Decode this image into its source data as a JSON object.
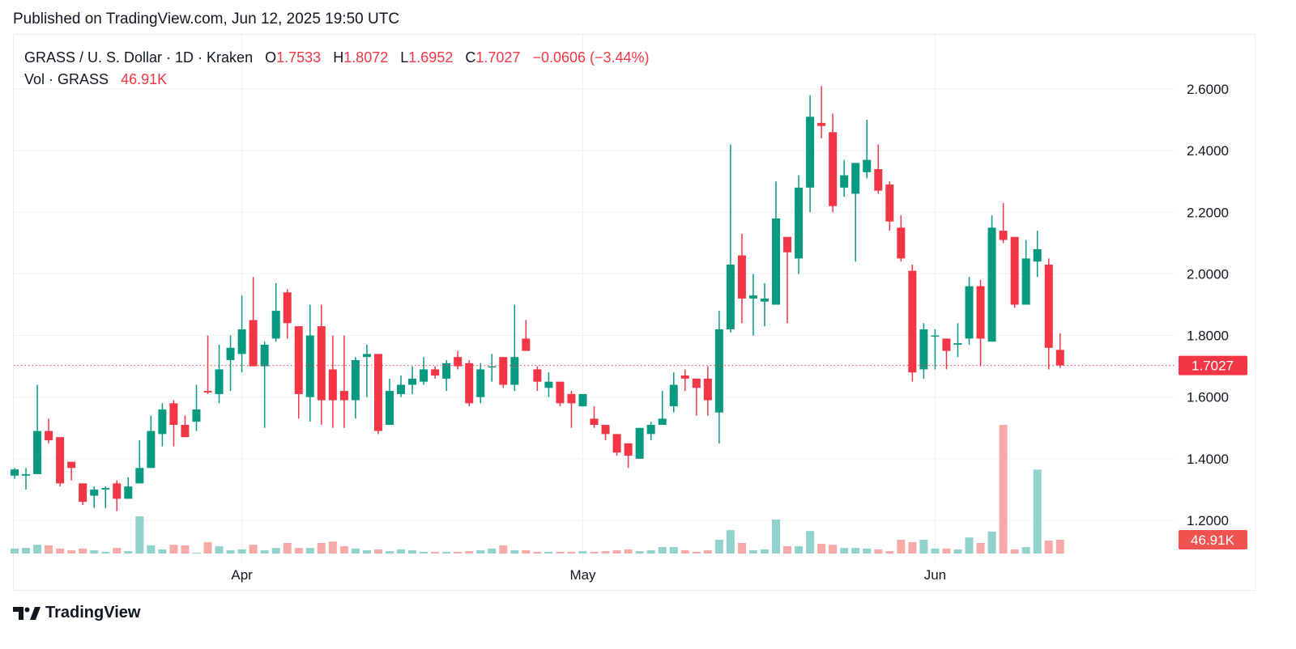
{
  "header": {
    "published": "Published on TradingView.com, Jun 12, 2025 19:50 UTC"
  },
  "legend": {
    "symbol": "GRASS / U. S. Dollar · 1D · Kraken",
    "o_label": "O",
    "o": "1.7533",
    "h_label": "H",
    "h": "1.8072",
    "l_label": "L",
    "l": "1.6952",
    "c_label": "C",
    "c": "1.7027",
    "change": "−0.0606 (−3.44%)",
    "vol_label": "Vol · GRASS",
    "vol": "46.91K"
  },
  "footer": {
    "logo_text": "TradingView"
  },
  "chart_data": {
    "type": "candlestick",
    "symbol": "GRASS/USD",
    "interval": "1D",
    "exchange": "Kraken",
    "y_ticks": [
      "1.2000",
      "1.4000",
      "1.6000",
      "1.8000",
      "2.0000",
      "2.2000",
      "2.4000",
      "2.6000"
    ],
    "x_ticks": [
      {
        "label": "Apr",
        "date": "2025-04-01"
      },
      {
        "label": "May",
        "date": "2025-05-01"
      },
      {
        "label": "Jun",
        "date": "2025-06-01"
      }
    ],
    "last_price_label": "1.7027",
    "last_volume_label": "46.91K",
    "grid": true,
    "colors": {
      "up": "#089981",
      "down": "#f23645",
      "vol_up": "#92d2cc",
      "vol_down": "#f7a9a7"
    },
    "columns": [
      "date",
      "open",
      "high",
      "low",
      "close",
      "volume_k"
    ],
    "candles": [
      [
        "2025-03-12",
        1.345,
        1.37,
        1.335,
        1.365,
        17
      ],
      [
        "2025-03-13",
        1.345,
        1.37,
        1.3,
        1.35,
        19
      ],
      [
        "2025-03-14",
        1.35,
        1.64,
        1.35,
        1.49,
        30
      ],
      [
        "2025-03-15",
        1.49,
        1.53,
        1.45,
        1.46,
        28
      ],
      [
        "2025-03-16",
        1.47,
        1.47,
        1.31,
        1.32,
        17
      ],
      [
        "2025-03-17",
        1.39,
        1.39,
        1.33,
        1.37,
        11
      ],
      [
        "2025-03-18",
        1.32,
        1.32,
        1.25,
        1.26,
        17
      ],
      [
        "2025-03-19",
        1.28,
        1.31,
        1.24,
        1.3,
        11
      ],
      [
        "2025-03-20",
        1.3,
        1.31,
        1.24,
        1.305,
        6
      ],
      [
        "2025-03-21",
        1.32,
        1.33,
        1.23,
        1.27,
        19
      ],
      [
        "2025-03-22",
        1.27,
        1.34,
        1.27,
        1.31,
        8
      ],
      [
        "2025-03-23",
        1.32,
        1.46,
        1.32,
        1.37,
        127
      ],
      [
        "2025-03-24",
        1.37,
        1.54,
        1.37,
        1.49,
        28
      ],
      [
        "2025-03-25",
        1.48,
        1.58,
        1.44,
        1.56,
        14
      ],
      [
        "2025-03-26",
        1.58,
        1.59,
        1.44,
        1.51,
        30
      ],
      [
        "2025-03-27",
        1.51,
        1.54,
        1.47,
        1.47,
        28
      ],
      [
        "2025-03-28",
        1.52,
        1.64,
        1.49,
        1.56,
        3
      ],
      [
        "2025-03-29",
        1.62,
        1.8,
        1.61,
        1.615,
        39
      ],
      [
        "2025-03-30",
        1.61,
        1.77,
        1.58,
        1.69,
        25
      ],
      [
        "2025-03-31",
        1.72,
        1.8,
        1.62,
        1.76,
        11
      ],
      [
        "2025-04-01",
        1.74,
        1.93,
        1.68,
        1.82,
        14
      ],
      [
        "2025-04-02",
        1.85,
        1.99,
        1.7,
        1.7,
        30
      ],
      [
        "2025-04-03",
        1.7,
        1.78,
        1.5,
        1.77,
        11
      ],
      [
        "2025-04-04",
        1.79,
        1.97,
        1.78,
        1.88,
        19
      ],
      [
        "2025-04-05",
        1.94,
        1.95,
        1.79,
        1.84,
        36
      ],
      [
        "2025-04-06",
        1.83,
        1.83,
        1.53,
        1.61,
        19
      ],
      [
        "2025-04-07",
        1.6,
        1.9,
        1.52,
        1.8,
        19
      ],
      [
        "2025-04-08",
        1.83,
        1.9,
        1.51,
        1.59,
        36
      ],
      [
        "2025-04-09",
        1.69,
        1.8,
        1.5,
        1.59,
        41
      ],
      [
        "2025-04-10",
        1.62,
        1.8,
        1.5,
        1.59,
        25
      ],
      [
        "2025-04-11",
        1.59,
        1.73,
        1.53,
        1.72,
        17
      ],
      [
        "2025-04-12",
        1.73,
        1.77,
        1.6,
        1.74,
        11
      ],
      [
        "2025-04-13",
        1.74,
        1.74,
        1.48,
        1.49,
        14
      ],
      [
        "2025-04-14",
        1.51,
        1.66,
        1.51,
        1.62,
        8
      ],
      [
        "2025-04-15",
        1.61,
        1.67,
        1.6,
        1.64,
        14
      ],
      [
        "2025-04-16",
        1.64,
        1.7,
        1.61,
        1.66,
        11
      ],
      [
        "2025-04-17",
        1.65,
        1.73,
        1.64,
        1.69,
        6
      ],
      [
        "2025-04-18",
        1.69,
        1.7,
        1.66,
        1.67,
        6
      ],
      [
        "2025-04-19",
        1.66,
        1.72,
        1.62,
        1.71,
        6
      ],
      [
        "2025-04-20",
        1.73,
        1.75,
        1.69,
        1.7,
        6
      ],
      [
        "2025-04-21",
        1.71,
        1.72,
        1.57,
        1.58,
        8
      ],
      [
        "2025-04-22",
        1.6,
        1.71,
        1.58,
        1.69,
        11
      ],
      [
        "2025-04-23",
        1.7,
        1.74,
        1.65,
        1.7,
        17
      ],
      [
        "2025-04-24",
        1.73,
        1.73,
        1.63,
        1.64,
        28
      ],
      [
        "2025-04-25",
        1.64,
        1.9,
        1.62,
        1.73,
        11
      ],
      [
        "2025-04-26",
        1.79,
        1.85,
        1.75,
        1.75,
        11
      ],
      [
        "2025-04-27",
        1.69,
        1.7,
        1.62,
        1.65,
        6
      ],
      [
        "2025-04-28",
        1.63,
        1.68,
        1.6,
        1.65,
        6
      ],
      [
        "2025-04-29",
        1.65,
        1.65,
        1.57,
        1.58,
        6
      ],
      [
        "2025-04-30",
        1.61,
        1.62,
        1.5,
        1.58,
        6
      ],
      [
        "2025-05-01",
        1.57,
        1.61,
        1.57,
        1.61,
        8
      ],
      [
        "2025-05-02",
        1.53,
        1.57,
        1.5,
        1.51,
        6
      ],
      [
        "2025-05-03",
        1.51,
        1.51,
        1.46,
        1.48,
        8
      ],
      [
        "2025-05-04",
        1.48,
        1.48,
        1.41,
        1.42,
        11
      ],
      [
        "2025-05-05",
        1.45,
        1.45,
        1.37,
        1.41,
        14
      ],
      [
        "2025-05-06",
        1.4,
        1.5,
        1.4,
        1.5,
        8
      ],
      [
        "2025-05-07",
        1.48,
        1.52,
        1.46,
        1.51,
        11
      ],
      [
        "2025-05-08",
        1.51,
        1.62,
        1.51,
        1.53,
        22
      ],
      [
        "2025-05-09",
        1.57,
        1.68,
        1.55,
        1.64,
        22
      ],
      [
        "2025-05-10",
        1.67,
        1.69,
        1.62,
        1.66,
        11
      ],
      [
        "2025-05-11",
        1.66,
        1.66,
        1.54,
        1.63,
        6
      ],
      [
        "2025-05-12",
        1.66,
        1.7,
        1.54,
        1.59,
        11
      ],
      [
        "2025-05-13",
        1.55,
        1.88,
        1.45,
        1.82,
        47
      ],
      [
        "2025-05-14",
        1.82,
        2.42,
        1.81,
        2.03,
        80
      ],
      [
        "2025-05-15",
        2.06,
        2.13,
        1.84,
        1.92,
        36
      ],
      [
        "2025-05-16",
        1.92,
        2.0,
        1.8,
        1.93,
        11
      ],
      [
        "2025-05-17",
        1.91,
        1.97,
        1.83,
        1.92,
        14
      ],
      [
        "2025-05-18",
        1.9,
        2.3,
        1.9,
        2.18,
        116
      ],
      [
        "2025-05-19",
        2.12,
        2.12,
        1.84,
        2.07,
        25
      ],
      [
        "2025-05-20",
        2.05,
        2.32,
        2.0,
        2.28,
        25
      ],
      [
        "2025-05-21",
        2.28,
        2.58,
        2.2,
        2.51,
        77
      ],
      [
        "2025-05-22",
        2.49,
        2.61,
        2.44,
        2.48,
        33
      ],
      [
        "2025-05-23",
        2.46,
        2.52,
        2.2,
        2.22,
        30
      ],
      [
        "2025-05-24",
        2.28,
        2.37,
        2.25,
        2.32,
        19
      ],
      [
        "2025-05-25",
        2.26,
        2.36,
        2.04,
        2.36,
        19
      ],
      [
        "2025-05-26",
        2.33,
        2.5,
        2.31,
        2.37,
        17
      ],
      [
        "2025-05-27",
        2.34,
        2.42,
        2.26,
        2.27,
        14
      ],
      [
        "2025-05-28",
        2.29,
        2.3,
        2.14,
        2.17,
        8
      ],
      [
        "2025-05-29",
        2.15,
        2.19,
        2.04,
        2.05,
        47
      ],
      [
        "2025-05-30",
        2.01,
        2.03,
        1.65,
        1.68,
        39
      ],
      [
        "2025-05-31",
        1.69,
        1.84,
        1.66,
        1.82,
        47
      ],
      [
        "2025-06-01",
        1.8,
        1.82,
        1.69,
        1.8,
        17
      ],
      [
        "2025-06-02",
        1.79,
        1.79,
        1.69,
        1.75,
        17
      ],
      [
        "2025-06-03",
        1.77,
        1.84,
        1.73,
        1.775,
        14
      ],
      [
        "2025-06-04",
        1.79,
        1.99,
        1.77,
        1.96,
        55
      ],
      [
        "2025-06-05",
        1.96,
        1.98,
        1.7,
        1.79,
        36
      ],
      [
        "2025-06-06",
        1.78,
        2.19,
        1.78,
        2.15,
        75
      ],
      [
        "2025-06-07",
        2.14,
        2.23,
        2.1,
        2.11,
        440
      ],
      [
        "2025-06-08",
        2.12,
        2.12,
        1.89,
        1.9,
        14
      ],
      [
        "2025-06-09",
        1.9,
        2.11,
        1.9,
        2.05,
        22
      ],
      [
        "2025-06-10",
        2.04,
        2.14,
        1.99,
        2.08,
        287
      ],
      [
        "2025-06-11",
        2.03,
        2.05,
        1.69,
        1.76,
        44
      ],
      [
        "2025-06-12",
        1.7533,
        1.8072,
        1.6952,
        1.7027,
        46.91
      ]
    ]
  }
}
